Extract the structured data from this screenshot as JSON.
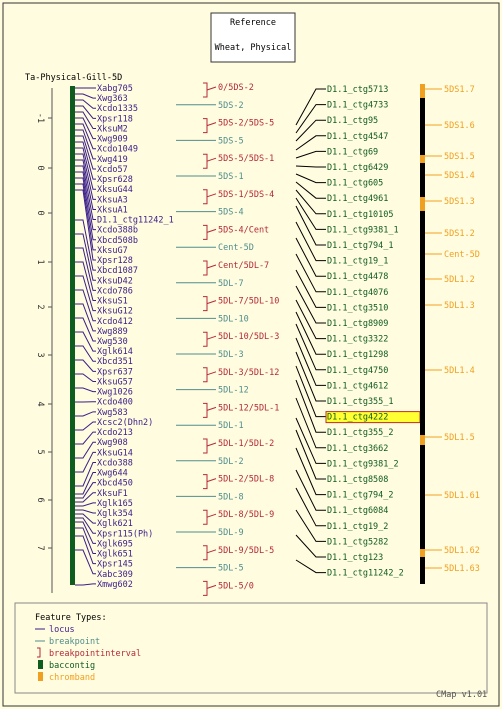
{
  "header": {
    "line1": "Reference",
    "line2": "Wheat, Physical"
  },
  "map_title": "Ta-Physical-Gill-5D",
  "colors": {
    "locus": "#3a1d8a",
    "breakpoint": "#4f8e8e",
    "interval": "#b32a3a",
    "baccontig": "#0f5c1f",
    "chromband": "#f0a020",
    "border": "#333333"
  },
  "axis": {
    "ticks": [
      "-1",
      "0",
      "0",
      "1",
      "2",
      "3",
      "4",
      "5",
      "6",
      "7"
    ]
  },
  "loci": [
    "Xabg705",
    "Xwg363",
    "Xcdo1335",
    "Xpsr118",
    "XksuM2",
    "Xwg909",
    "Xcdo1049",
    "Xwg419",
    "Xcdo57",
    "Xpsr628",
    "XksuG44",
    "XksuA3",
    "XksuA1",
    "D1.1_ctg11242_1",
    "Xcdo388b",
    "Xbcd508b",
    "XksuG7",
    "Xpsr128",
    "Xbcd1087",
    "XksuD42",
    "Xcdo786",
    "XksuS1",
    "XksuG12",
    "Xcdo412",
    "Xwg889",
    "Xwg530",
    "Xglk614",
    "Xbcd351",
    "Xpsr637",
    "XksuG57",
    "Xwg1026",
    "Xcdo400",
    "Xwg583",
    "Xcsc2(Dhn2)",
    "Xcdo213",
    "Xwg908",
    "XksuG14",
    "Xcdo388",
    "Xwg644",
    "Xbcd450",
    "XksuF1",
    "Xglk165",
    "Xglk354",
    "Xglk621",
    "Xpsr115(Ph)",
    "Xglk695",
    "Xglk651",
    "Xpsr145",
    "Xabc309",
    "Xmwg602"
  ],
  "intervals": [
    {
      "label": "0/5DS-2",
      "type": "interval"
    },
    {
      "label": "5DS-2",
      "type": "breakpoint"
    },
    {
      "label": "5DS-2/5DS-5",
      "type": "interval"
    },
    {
      "label": "5DS-5",
      "type": "breakpoint"
    },
    {
      "label": "5DS-5/5DS-1",
      "type": "interval"
    },
    {
      "label": "5DS-1",
      "type": "breakpoint"
    },
    {
      "label": "5DS-1/5DS-4",
      "type": "interval"
    },
    {
      "label": "5DS-4",
      "type": "breakpoint"
    },
    {
      "label": "5DS-4/Cent",
      "type": "interval"
    },
    {
      "label": "Cent-5D",
      "type": "breakpoint"
    },
    {
      "label": "Cent/5DL-7",
      "type": "interval"
    },
    {
      "label": "5DL-7",
      "type": "breakpoint"
    },
    {
      "label": "5DL-7/5DL-10",
      "type": "interval"
    },
    {
      "label": "5DL-10",
      "type": "breakpoint"
    },
    {
      "label": "5DL-10/5DL-3",
      "type": "interval"
    },
    {
      "label": "5DL-3",
      "type": "breakpoint"
    },
    {
      "label": "5DL-3/5DL-12",
      "type": "interval"
    },
    {
      "label": "5DL-12",
      "type": "breakpoint"
    },
    {
      "label": "5DL-12/5DL-1",
      "type": "interval"
    },
    {
      "label": "5DL-1",
      "type": "breakpoint"
    },
    {
      "label": "5DL-1/5DL-2",
      "type": "interval"
    },
    {
      "label": "5DL-2",
      "type": "breakpoint"
    },
    {
      "label": "5DL-2/5DL-8",
      "type": "interval"
    },
    {
      "label": "5DL-8",
      "type": "breakpoint"
    },
    {
      "label": "5DL-8/5DL-9",
      "type": "interval"
    },
    {
      "label": "5DL-9",
      "type": "breakpoint"
    },
    {
      "label": "5DL-9/5DL-5",
      "type": "interval"
    },
    {
      "label": "5DL-5",
      "type": "breakpoint"
    },
    {
      "label": "5DL-5/0",
      "type": "interval"
    }
  ],
  "contigs": [
    "D1.1_ctg5713",
    "D1.1_ctg4733",
    "D1.1_ctg95",
    "D1.1_ctg4547",
    "D1.1_ctg69",
    "D1.1_ctg6429",
    "D1.1_ctg605",
    "D1.1_ctg4961",
    "D1.1_ctg10105",
    "D1.1_ctg9381_1",
    "D1.1_ctg794_1",
    "D1.1_ctg19_1",
    "D1.1_ctg4478",
    "D1.1_ctg4076",
    "D1.1_ctg3510",
    "D1.1_ctg8909",
    "D1.1_ctg3322",
    "D1.1_ctg1298",
    "D1.1_ctg4750",
    "D1.1_ctg4612",
    "D1.1_ctg355_1",
    "D1.1_ctg4222",
    "D1.1_ctg355_2",
    "D1.1_ctg3662",
    "D1.1_ctg9381_2",
    "D1.1_ctg8508",
    "D1.1_ctg794_2",
    "D1.1_ctg6084",
    "D1.1_ctg19_2",
    "D1.1_ctg5282",
    "D1.1_ctg123",
    "D1.1_ctg11242_2"
  ],
  "highlighted_contig": "D1.1_ctg4222",
  "bands": [
    "5DS1.7",
    "5DS1.6",
    "5DS1.5",
    "5DS1.4",
    "5DS1.3",
    "5DS1.2",
    "Cent-5D",
    "5DL1.2",
    "5DL1.3",
    "5DL1.4",
    "5DL1.5",
    "5DL1.61",
    "5DL1.62",
    "5DL1.63"
  ],
  "legend": {
    "title": "Feature Types:",
    "items": [
      {
        "label": "locus",
        "kind": "line",
        "color_key": "locus"
      },
      {
        "label": "breakpoint",
        "kind": "line",
        "color_key": "breakpoint"
      },
      {
        "label": "breakpointinterval",
        "kind": "bracket",
        "color_key": "interval"
      },
      {
        "label": "baccontig",
        "kind": "box",
        "color_key": "baccontig"
      },
      {
        "label": "chromband",
        "kind": "box",
        "color_key": "chromband"
      }
    ]
  },
  "version": "CMap v1.01"
}
